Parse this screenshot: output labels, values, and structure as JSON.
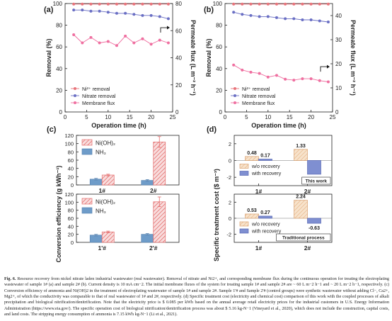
{
  "caption": {
    "label": "Fig. 6.",
    "text": "Resource recovery from nickel nitrate laden industrial wastewater (real wastewater). Removal of nitrate and Ni2+, and corresponding membrane flux during the continuous operation for treating the electroplating wastewater of sample 1# (a) and sample 2# (b). Current density is 10 mA cm−2. The initial membrane fluxes of the system for treating sample 1# and sample 2# are ~ 60 L m−2 h−1 and ~ 20 L m−2 h−1, respectively. (c) Conversion efficiency of ammonia and Ni(OH)2 in the treatment of electroplating wastewater of sample 1# and sample 2#. Sample 1'# and Sample 2'# (control groups) were synthetic wastewater without adding Cl−, Ca2+, Mg2+, of which the conductivity was comparable to that of real wastewater of 1# and 2#, respectively. (d) Specific treatment cost (electricity and chemical cost) comparison of this work with the coupled processes of alkali precipitation and biological nitrification/denitrification. Note that the electricity price is $ 0.085 per kWh based on the annual average retail electricity prices for the industrial customers in U.S. Energy Information Administration (https://www.eia.gov/). The specific operation cost of biological nitrification/denitrification process was about $ 5.16 kg-N−1 (Vineyard et al., 2020), which does not include the construction, capital costs, and land costs. The stripping energy consumption of ammonia is 7.15 kWh kg-N−1 (Li et al., 2021)."
  },
  "colors": {
    "ni_removal": "#e8737a",
    "nitrate_removal": "#6a6fc4",
    "membrane_flux": "#ef6fa0",
    "bar_nh3": "#6e9cc9",
    "bar_nioh2": "#ee9e9e",
    "bar_no_recovery": "#f3cfa6",
    "bar_recovery": "#7f8fd1",
    "axis": "#222222"
  },
  "chart_data": [
    {
      "panel": "(a)",
      "type": "line",
      "xlabel": "Operation time (h)",
      "ylabel": "Removal (%)",
      "y2label": "Permeate flux (L m⁻² h⁻¹)",
      "xlim": [
        0,
        25
      ],
      "ylim": [
        0,
        100
      ],
      "y2lim": [
        0,
        80
      ],
      "xticks": [
        0,
        5,
        10,
        15,
        20,
        25
      ],
      "yticks": [
        0,
        20,
        40,
        60,
        80,
        100
      ],
      "y2ticks": [
        0,
        20,
        40,
        60,
        80
      ],
      "legend_position": "bottom-left",
      "grid": false,
      "series": [
        {
          "name": "Ni²⁺ removal",
          "axis": "left",
          "marker": "circle",
          "x": [
            2,
            4,
            6,
            8,
            10,
            12,
            14,
            16,
            18,
            20,
            22,
            24
          ],
          "y": [
            99.5,
            99.5,
            99.5,
            99.5,
            99.5,
            99.5,
            99.5,
            99.5,
            99.5,
            99.5,
            99.5,
            99.5
          ]
        },
        {
          "name": "Nitrate removal",
          "axis": "left",
          "marker": "circle",
          "x": [
            2,
            4,
            6,
            8,
            10,
            12,
            14,
            16,
            18,
            20,
            22,
            24
          ],
          "y": [
            94,
            94,
            93,
            93,
            92,
            91,
            91,
            90,
            89,
            89,
            88,
            86
          ]
        },
        {
          "name": "Membrane flux",
          "axis": "right",
          "marker": "circle",
          "x": [
            2,
            4,
            6,
            8,
            10,
            12,
            14,
            16,
            18,
            20,
            22,
            24
          ],
          "y": [
            57,
            51,
            55,
            51,
            52,
            49,
            56,
            51,
            54,
            50,
            53,
            51
          ]
        }
      ]
    },
    {
      "panel": "(b)",
      "type": "line",
      "xlabel": "Operation time (h)",
      "ylabel": "Removal (%)",
      "y2label": "Permeate flux (L m⁻² h⁻¹)",
      "xlim": [
        0,
        25
      ],
      "ylim": [
        0,
        100
      ],
      "y2lim": [
        0,
        45
      ],
      "xticks": [
        0,
        5,
        10,
        15,
        20,
        25
      ],
      "yticks": [
        0,
        20,
        40,
        60,
        80,
        100
      ],
      "y2ticks": [
        0,
        10,
        20,
        30,
        40
      ],
      "legend_position": "bottom-left",
      "grid": false,
      "series": [
        {
          "name": "Ni²⁺ removal",
          "axis": "left",
          "marker": "circle",
          "x": [
            2,
            4,
            6,
            8,
            10,
            12,
            14,
            16,
            18,
            20,
            22,
            24
          ],
          "y": [
            99.5,
            99.5,
            99.5,
            99.5,
            99.5,
            99.5,
            99.5,
            99.5,
            99.5,
            99.5,
            99.5,
            99.5
          ]
        },
        {
          "name": "Nitrate removal",
          "axis": "left",
          "marker": "circle",
          "x": [
            2,
            4,
            6,
            8,
            10,
            12,
            14,
            16,
            18,
            20,
            22,
            24
          ],
          "y": [
            92,
            90,
            89,
            88,
            88,
            87,
            86,
            86,
            85,
            85,
            84,
            83
          ]
        },
        {
          "name": "Membrane flux",
          "axis": "right",
          "marker": "circle",
          "x": [
            2,
            4,
            6,
            8,
            10,
            12,
            14,
            16,
            18,
            20,
            22,
            24
          ],
          "y": [
            19.5,
            17.4,
            16.5,
            16.0,
            14.5,
            15.2,
            13.6,
            13.2,
            13.8,
            13.8,
            13.0,
            12.5
          ]
        }
      ]
    },
    {
      "panel": "(c)",
      "type": "bar",
      "ylabel": "Conversion efficiency (g kWh⁻¹)",
      "ylim": [
        0,
        120
      ],
      "yticks": [
        0,
        20,
        40,
        60,
        80,
        100,
        120
      ],
      "categories": [
        "1#",
        "2#"
      ],
      "legend_position": "top-left",
      "series": [
        {
          "name": "NH₃",
          "values": [
            14,
            11
          ],
          "errors": [
            2,
            2
          ]
        },
        {
          "name": "Ni(OH)₂",
          "values": [
            24,
            104
          ],
          "errors": [
            2,
            13
          ]
        }
      ]
    },
    {
      "panel": "(c)",
      "type": "bar",
      "ylabel": "Conversion efficiency (g kWh⁻¹)",
      "ylim": [
        0,
        120
      ],
      "yticks": [
        0,
        20,
        40,
        60,
        80,
        100,
        120
      ],
      "categories": [
        "1'#",
        "2'#"
      ],
      "legend_position": "top-left",
      "series": [
        {
          "name": "NH₃",
          "values": [
            18,
            20
          ],
          "errors": [
            2,
            2
          ]
        },
        {
          "name": "Ni(OH)₂",
          "values": [
            26,
            101
          ],
          "errors": [
            2,
            12
          ]
        }
      ]
    },
    {
      "panel": "(d)",
      "type": "bar",
      "ylabel": "Specific treatment cost ($ m⁻³)",
      "ylim": [
        -3,
        3
      ],
      "yticks": [
        -2,
        0,
        2
      ],
      "categories": [
        "1#",
        "2#"
      ],
      "annotation": "This work",
      "legend_position": "center-left",
      "series": [
        {
          "name": "w/o recovery",
          "values": [
            0.48,
            1.33
          ],
          "labels": [
            "0.48",
            "1.33"
          ]
        },
        {
          "name": "with recovery",
          "values": [
            0.17,
            -1.64
          ],
          "labels": [
            "0.17",
            "-1.64"
          ]
        }
      ]
    },
    {
      "panel": "(d)",
      "type": "bar",
      "ylabel": "Specific treatment cost ($ m⁻³)",
      "ylim": [
        -3,
        3
      ],
      "yticks": [
        -2,
        0,
        2
      ],
      "categories": [
        "1#",
        "2#"
      ],
      "annotation": "Traditional process",
      "legend_position": "center-left",
      "series": [
        {
          "name": "w/o recovery",
          "values": [
            0.53,
            2.24
          ],
          "labels": [
            "0.53",
            "2.24"
          ]
        },
        {
          "name": "with recovery",
          "values": [
            0.27,
            -0.63
          ],
          "labels": [
            "0.27",
            "-0.63"
          ]
        }
      ]
    }
  ]
}
